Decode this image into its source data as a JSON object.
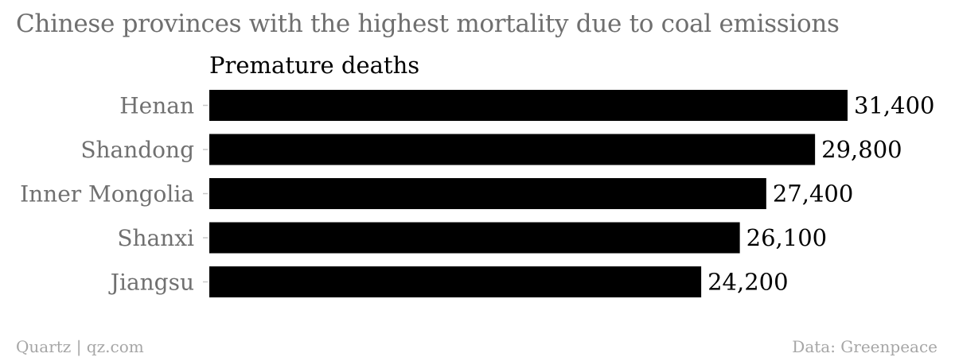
{
  "title": "Chinese provinces with the highest mortality due to coal emissions",
  "footer": {
    "source_credit": "Quartz | qz.com",
    "data_credit": "Data: Greenpeace"
  },
  "colors": {
    "bar": "#000000",
    "category_label": "#707070",
    "value_label": "#000000",
    "title": "#6f6f6f",
    "footer": "#a6a6a6"
  },
  "chart_data": {
    "type": "bar",
    "orientation": "horizontal",
    "title": "Chinese provinces with the highest mortality due to coal emissions",
    "series": [
      {
        "name": "Premature deaths",
        "values": [
          31400,
          29800,
          27400,
          26100,
          24200
        ]
      }
    ],
    "categories": [
      "Henan",
      "Shandong",
      "Inner Mongolia",
      "Shanxi",
      "Jiangsu"
    ],
    "value_labels": [
      "31,400",
      "29,800",
      "27,400",
      "26,100",
      "24,200"
    ],
    "xlim": [
      0,
      31400
    ],
    "grid": false,
    "legend": "none"
  }
}
